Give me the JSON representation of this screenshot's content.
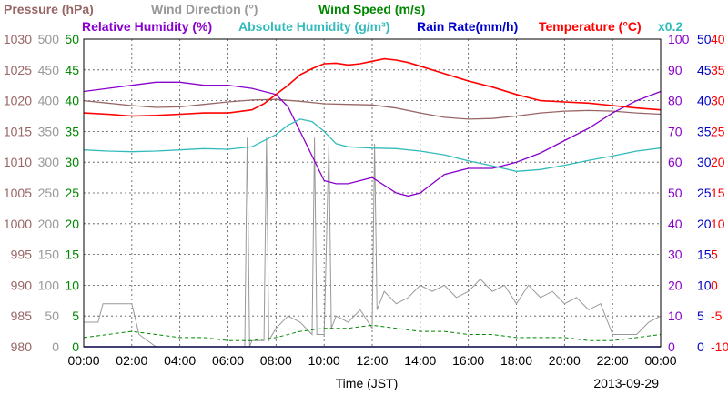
{
  "chart_data": {
    "type": "line",
    "title": "",
    "xlabel": "Time (JST)",
    "date": "2013-09-29",
    "x_ticks": [
      "00:00",
      "02:00",
      "04:00",
      "06:00",
      "08:00",
      "10:00",
      "12:00",
      "14:00",
      "16:00",
      "18:00",
      "20:00",
      "22:00",
      "00:00"
    ],
    "xlim": [
      0,
      24
    ],
    "grid": true,
    "legend": [
      {
        "key": "pressure",
        "text": "Pressure (hPa)",
        "color": "#996666"
      },
      {
        "key": "wdir",
        "text": "Wind Direction (°)",
        "color": "#999999"
      },
      {
        "key": "wspd",
        "text": "Wind Speed (m/s)",
        "color": "#008800"
      },
      {
        "key": "rh",
        "text": "Relative Humidity (%)",
        "color": "#8800cc"
      },
      {
        "key": "ah",
        "text": "Absolute Humidity (g/m³)",
        "color": "#33bbbb"
      },
      {
        "key": "rain",
        "text": "Rain Rate(mm/h)",
        "color": "#0000cc"
      },
      {
        "key": "temp",
        "text": "Temperature (°C)",
        "color": "#ff0000"
      },
      {
        "key": "ahscale",
        "text": "x0.2",
        "color": "#33bbbb"
      }
    ],
    "axes": [
      {
        "name": "Pressure (hPa)",
        "side": "left",
        "color": "#996666",
        "ticks": [
          "1030",
          "1025",
          "1020",
          "1015",
          "1010",
          "1005",
          "1000",
          "995",
          "990",
          "985",
          "980"
        ],
        "range": [
          980,
          1030
        ]
      },
      {
        "name": "Wind Direction (°)",
        "side": "left",
        "color": "#999999",
        "ticks": [
          "500",
          "450",
          "400",
          "350",
          "300",
          "250",
          "200",
          "150",
          "100",
          "50",
          "0"
        ],
        "range": [
          0,
          500
        ]
      },
      {
        "name": "Wind Speed (m/s)",
        "side": "left",
        "color": "#008800",
        "ticks": [
          "50",
          "45",
          "40",
          "35",
          "30",
          "25",
          "20",
          "15",
          "10",
          "5",
          "0"
        ],
        "range": [
          0,
          50
        ]
      },
      {
        "name": "Relative Humidity (%)",
        "side": "right",
        "color": "#8800cc",
        "ticks": [
          "100",
          "90",
          "80",
          "70",
          "60",
          "50",
          "40",
          "30",
          "20",
          "10",
          "0"
        ],
        "range": [
          0,
          100
        ]
      },
      {
        "name": "Rain Rate(mm/h)",
        "side": "right",
        "color": "#0000cc",
        "ticks": [
          "50",
          "45",
          "40",
          "35",
          "30",
          "25",
          "20",
          "15",
          "10",
          "5",
          "0"
        ],
        "range": [
          0,
          50
        ]
      },
      {
        "name": "Temperature (°C)",
        "side": "right",
        "color": "#ff0000",
        "ticks": [
          "40",
          "35",
          "30",
          "25",
          "20",
          "15",
          "10",
          "5",
          "0",
          "-5",
          "-10"
        ],
        "range": [
          -10,
          40
        ]
      }
    ],
    "series": [
      {
        "name": "Pressure (hPa)",
        "key": "pressure",
        "axis": "Pressure (hPa)",
        "color": "#996666",
        "x": [
          0,
          1,
          2,
          3,
          4,
          5,
          6,
          7,
          8,
          9,
          10,
          11,
          12,
          13,
          14,
          15,
          16,
          17,
          18,
          19,
          20,
          21,
          22,
          23,
          24
        ],
        "y": [
          1020.0,
          1019.6,
          1019.2,
          1018.9,
          1019.0,
          1019.4,
          1019.8,
          1020.1,
          1020.2,
          1019.9,
          1019.5,
          1019.4,
          1019.3,
          1018.8,
          1018.0,
          1017.3,
          1017.0,
          1017.1,
          1017.5,
          1018.0,
          1018.3,
          1018.4,
          1018.3,
          1018.0,
          1017.8
        ]
      },
      {
        "name": "Wind Direction (°)",
        "key": "wdir",
        "axis": "Wind Direction (°)",
        "color": "#999999",
        "x": [
          0,
          0.6,
          0.8,
          2.0,
          2.3,
          3,
          4,
          5,
          6,
          6.7,
          6.8,
          6.9,
          7.0,
          7.5,
          7.6,
          7.7,
          8,
          8.5,
          9,
          9.5,
          9.6,
          9.7,
          10.0,
          10.2,
          10.3,
          10.5,
          11,
          11.5,
          12,
          12.1,
          12.2,
          12.4,
          12.5,
          13,
          13.5,
          14,
          14.5,
          15,
          15.5,
          16,
          16.5,
          17,
          17.5,
          18,
          18.5,
          19,
          19.5,
          20,
          20.5,
          21,
          21.5,
          22,
          22.5,
          23,
          23.5,
          24
        ],
        "y": [
          40,
          40,
          70,
          70,
          20,
          0,
          0,
          0,
          0,
          0,
          340,
          0,
          10,
          10,
          340,
          10,
          30,
          50,
          40,
          20,
          340,
          20,
          20,
          330,
          30,
          50,
          40,
          60,
          30,
          330,
          60,
          80,
          90,
          70,
          80,
          100,
          90,
          100,
          80,
          90,
          110,
          90,
          100,
          70,
          100,
          80,
          90,
          70,
          80,
          60,
          70,
          20,
          20,
          20,
          40,
          50
        ]
      },
      {
        "name": "Wind Speed (m/s)",
        "key": "wspd",
        "axis": "Wind Speed (m/s)",
        "color": "#008800",
        "x": [
          0,
          1,
          2,
          3,
          4,
          5,
          6,
          7,
          8,
          9,
          10,
          11,
          12,
          13,
          14,
          15,
          16,
          17,
          18,
          19,
          20,
          21,
          22,
          23,
          24
        ],
        "y": [
          1.5,
          2.0,
          2.5,
          2.0,
          1.5,
          1.5,
          1.0,
          1.0,
          1.5,
          2.5,
          3.0,
          3.0,
          3.5,
          3.0,
          2.5,
          2.5,
          2.0,
          2.0,
          1.5,
          1.5,
          1.5,
          1.0,
          1.0,
          1.5,
          2.0
        ]
      },
      {
        "name": "Relative Humidity (%)",
        "key": "rh",
        "axis": "Relative Humidity (%)",
        "color": "#8800cc",
        "x": [
          0,
          1,
          2,
          3,
          4,
          5,
          6,
          7,
          8,
          8.5,
          9,
          9.5,
          10,
          10.5,
          11,
          12,
          13,
          13.5,
          14,
          14.5,
          15,
          16,
          17,
          18,
          19,
          20,
          21,
          22,
          23,
          24
        ],
        "y": [
          83,
          84,
          85,
          86,
          86,
          85,
          85,
          84,
          82,
          78,
          70,
          62,
          54,
          53,
          53,
          55,
          50,
          49,
          50,
          53,
          56,
          58,
          58,
          60,
          63,
          67,
          71,
          76,
          80,
          83
        ]
      },
      {
        "name": "Absolute Humidity (g/m³)",
        "key": "ah",
        "axis": "Pressure (hPa)",
        "color": "#33bbbb",
        "x": [
          0,
          1,
          2,
          3,
          4,
          5,
          6,
          7,
          8,
          8.5,
          9,
          9.5,
          10,
          10.5,
          11,
          12,
          13,
          14,
          15,
          16,
          17,
          18,
          19,
          20,
          21,
          22,
          23,
          24
        ],
        "y": [
          1012.0,
          1011.8,
          1011.7,
          1011.8,
          1012.0,
          1012.2,
          1012.1,
          1012.5,
          1014.5,
          1016.0,
          1017.0,
          1016.6,
          1015.0,
          1013.0,
          1012.5,
          1012.3,
          1012.2,
          1011.8,
          1011.2,
          1010.2,
          1009.4,
          1008.5,
          1008.8,
          1009.5,
          1010.3,
          1011.0,
          1011.8,
          1012.3
        ]
      },
      {
        "name": "Rain Rate(mm/h)",
        "key": "rain",
        "axis": "Rain Rate(mm/h)",
        "color": "#0000cc",
        "x": [
          0,
          24
        ],
        "y": [
          0,
          0
        ]
      },
      {
        "name": "Temperature (°C)",
        "key": "temp",
        "axis": "Temperature (°C)",
        "color": "#ff0000",
        "x": [
          0,
          1,
          2,
          3,
          4,
          5,
          6,
          7,
          7.5,
          8,
          8.5,
          9,
          9.5,
          10,
          10.5,
          11,
          11.5,
          12,
          12.5,
          13,
          13.5,
          14,
          15,
          16,
          17,
          18,
          19,
          20,
          21,
          22,
          23,
          24
        ],
        "y": [
          28,
          27.8,
          27.5,
          27.6,
          27.8,
          28,
          28,
          28.5,
          29.5,
          31,
          32.5,
          34.2,
          35.2,
          36.0,
          36.1,
          35.8,
          36.0,
          36.4,
          36.8,
          36.6,
          36.2,
          35.6,
          34.4,
          33.2,
          32.2,
          31.0,
          30.0,
          29.8,
          29.6,
          29.2,
          28.8,
          28.5
        ]
      }
    ]
  }
}
